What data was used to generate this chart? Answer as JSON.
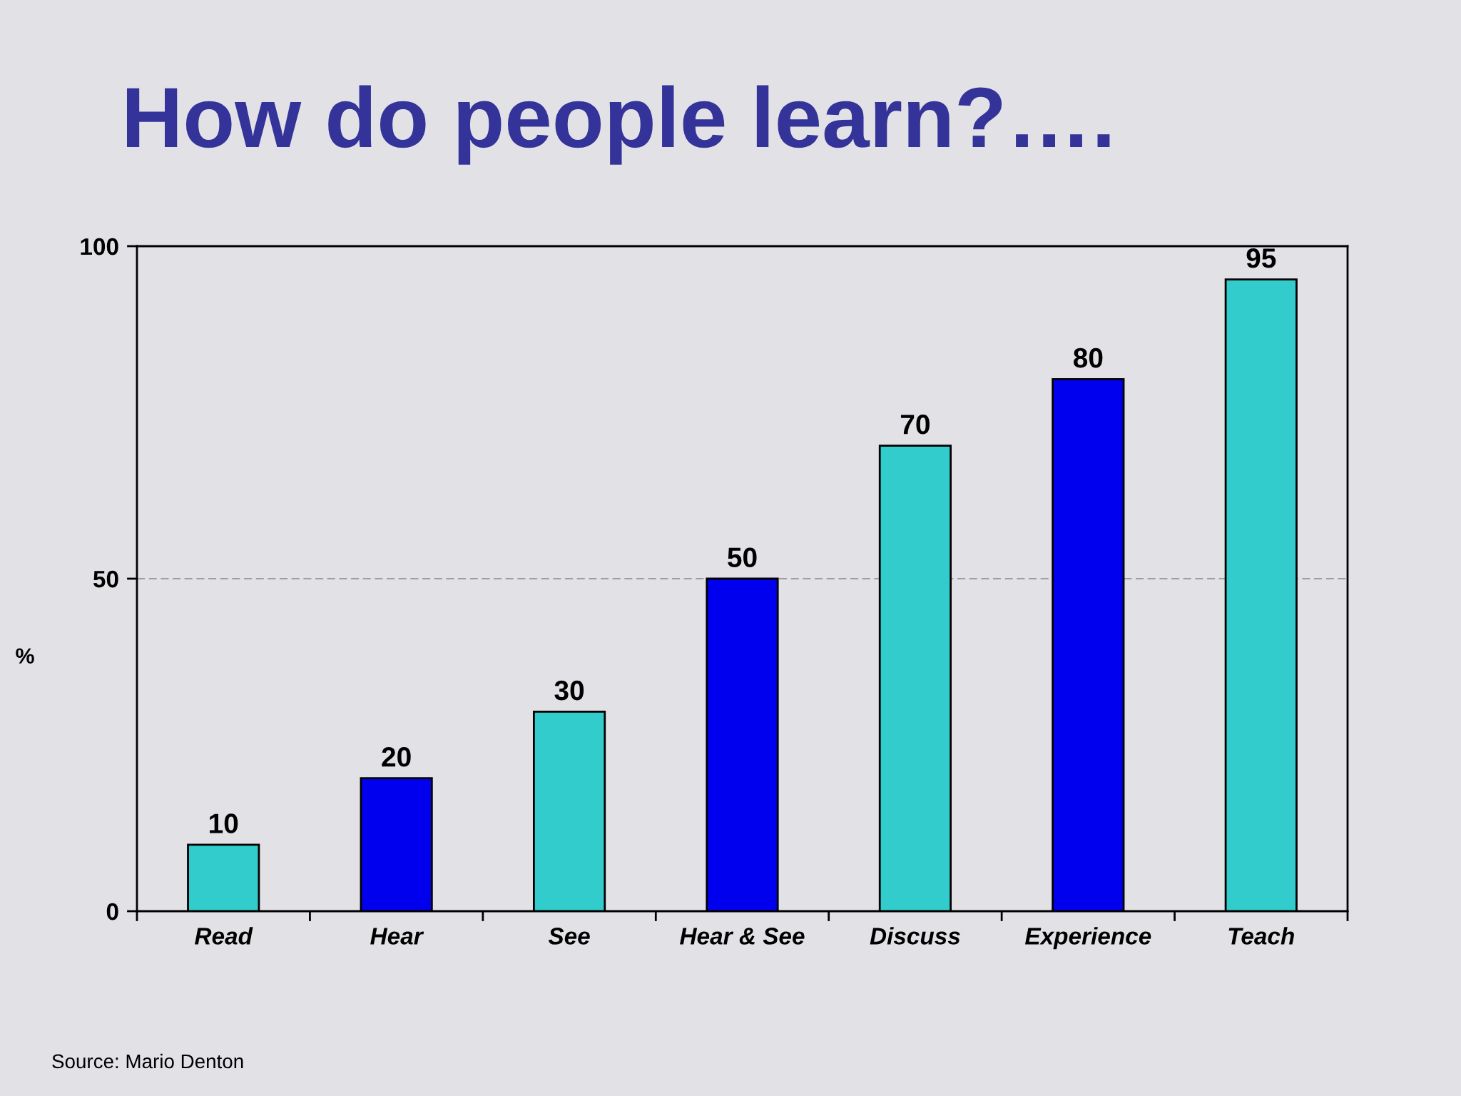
{
  "chart_data": {
    "type": "bar",
    "title": "How do people learn?….",
    "categories": [
      "Read",
      "Hear",
      "See",
      "Hear & See",
      "Discuss",
      "Experience",
      "Teach"
    ],
    "values": [
      10,
      20,
      30,
      50,
      70,
      80,
      95
    ],
    "colors": [
      "#33cccc",
      "#0000ee",
      "#33cccc",
      "#0000ee",
      "#33cccc",
      "#0000ee",
      "#33cccc"
    ],
    "ylabel": "%",
    "ylim": [
      0,
      100
    ],
    "yticks": [
      0,
      50,
      100
    ],
    "grid": "y",
    "data_labels": true,
    "annotations": [
      "Source: Mario Denton"
    ]
  }
}
